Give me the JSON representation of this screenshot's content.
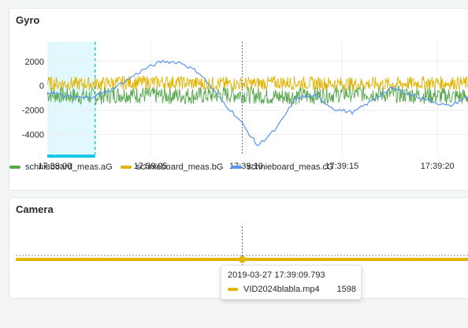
{
  "panels": {
    "gyro": {
      "title": "Gyro"
    },
    "camera": {
      "title": "Camera"
    }
  },
  "colors": {
    "aG": "#56a64b",
    "bG": "#e0b400",
    "cG": "#5794f2",
    "selection": "#18c6e8",
    "camera": "#e0b400"
  },
  "chart_data": [
    {
      "type": "line",
      "title": "Gyro",
      "x_axis": {
        "type": "time",
        "ticks": [
          "17:39:00",
          "17:39:05",
          "17:39:10",
          "17:39:15",
          "17:39:20"
        ],
        "range": [
          "17:38:59.6",
          "17:39:21.6"
        ]
      },
      "y_axis": {
        "ticks": [
          "2000",
          "0",
          "-2000",
          "-4000"
        ],
        "range": [
          -5700,
          3600
        ]
      },
      "grid": true,
      "legend": "bottom",
      "selected_range": [
        "17:38:59.6",
        "17:39:02.1"
      ],
      "hover_time": "17:39:09.793",
      "series": [
        {
          "name": "schnieboard_meas.aG",
          "color": "#56a64b",
          "kind": "noisy",
          "base": [
            [
              0,
              -700
            ],
            [
              2,
              -900
            ],
            [
              4,
              -700
            ],
            [
              6,
              -800
            ],
            [
              8,
              -800
            ],
            [
              10,
              -700
            ],
            [
              12,
              -900
            ],
            [
              14,
              -800
            ],
            [
              16,
              -600
            ],
            [
              18,
              -700
            ],
            [
              20,
              -800
            ],
            [
              22,
              -900
            ]
          ],
          "amp": 700
        },
        {
          "name": "schnieboard_meas.bG",
          "color": "#e0b400",
          "kind": "noisy",
          "base": [
            [
              0,
              200
            ],
            [
              2,
              150
            ],
            [
              4,
              250
            ],
            [
              6,
              300
            ],
            [
              8,
              200
            ],
            [
              10,
              150
            ],
            [
              12,
              250
            ],
            [
              14,
              200
            ],
            [
              16,
              150
            ],
            [
              18,
              150
            ],
            [
              20,
              250
            ],
            [
              22,
              200
            ]
          ],
          "amp": 550
        },
        {
          "name": "schnieboard_meas.cG",
          "color": "#5794f2",
          "kind": "smooth",
          "x": [
            0,
            1,
            2,
            3,
            4,
            5,
            6,
            7,
            8,
            9,
            10,
            11,
            12,
            13,
            14,
            15,
            16,
            17,
            18,
            19,
            20,
            21,
            22
          ],
          "values": [
            -500,
            -900,
            -1000,
            -600,
            300,
            1300,
            2000,
            1900,
            1000,
            -1000,
            -2700,
            -4900,
            -3500,
            -1000,
            -800,
            -1900,
            -2200,
            -1200,
            -200,
            -700,
            -1200,
            -1700,
            -900
          ]
        }
      ]
    },
    {
      "type": "line",
      "title": "Camera",
      "x_axis": {
        "type": "time",
        "range": [
          "17:38:59.6",
          "17:39:21.6"
        ]
      },
      "hover_time": "17:39:09.793",
      "series": [
        {
          "name": "VID2024blabla.mp4",
          "color": "#e0b400",
          "value": 1598
        }
      ]
    }
  ],
  "tooltip": {
    "time": "2019-03-27 17:39:09.793",
    "series": "VID2024blabla.mp4",
    "value": "1598"
  }
}
